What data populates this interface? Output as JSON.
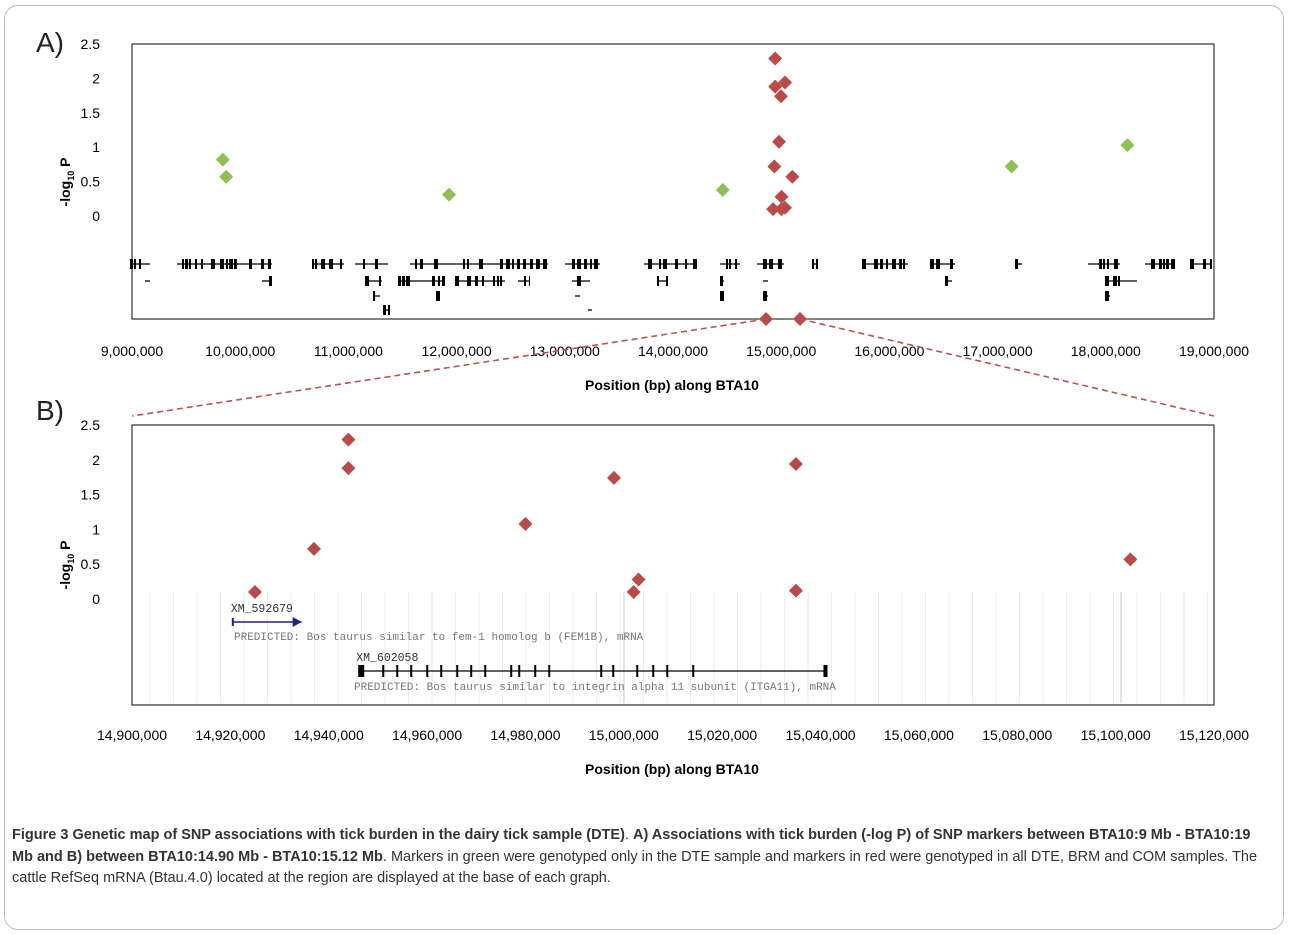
{
  "figure": {
    "caption": {
      "label": "Figure 3",
      "title": "Genetic map of SNP associations with tick burden in the dairy tick sample (DTE)",
      "sub_bold": "A) Associations with tick burden (-log P) of SNP markers between BTA10:9 Mb - BTA10:19 Mb and B) between BTA10:14.90 Mb - BTA10:15.12 Mb",
      "body": "Markers in green were genotyped only in the DTE sample and markers in red were genotyped in all DTE, BRM and COM samples. The cattle RefSeq mRNA (Btau.4.0) located at the region are displayed at the base of each graph."
    },
    "colors": {
      "green": "#8fbf55",
      "red": "#b94a48",
      "gene": "#000000",
      "zoom_line": "#c0504d"
    }
  },
  "chart_data": [
    {
      "type": "scatter",
      "panel_label": "A)",
      "xlabel": "Position (bp) along BTA10",
      "ylabel": "-log10 P",
      "xlim": [
        9000000,
        19000000
      ],
      "ylim": [
        0,
        2.5
      ],
      "x_ticks": [
        "9,000,000",
        "10,000,000",
        "11,000,000",
        "12,000,000",
        "13,000,000",
        "14,000,000",
        "15,000,000",
        "16,000,000",
        "17,000,000",
        "18,000,000",
        "19,000,000"
      ],
      "y_ticks": [
        "2.5",
        "2",
        "1.5",
        "1",
        "0.5",
        "0"
      ],
      "series": [
        {
          "color": "green",
          "points": [
            [
              9840000,
              0.82
            ],
            [
              9870000,
              0.57
            ],
            [
              11930000,
              0.31
            ],
            [
              14460000,
              0.38
            ],
            [
              17130000,
              0.72
            ],
            [
              18200000,
              1.03
            ]
          ]
        },
        {
          "color": "red",
          "points": [
            [
              14944000,
              2.29
            ],
            [
              14944000,
              1.88
            ],
            [
              15035000,
              1.94
            ],
            [
              14998000,
              1.74
            ],
            [
              14980000,
              1.08
            ],
            [
              14937000,
              0.72
            ],
            [
              15103000,
              0.57
            ],
            [
              15003000,
              0.28
            ],
            [
              15002000,
              0.1
            ],
            [
              14925000,
              0.1
            ],
            [
              15035000,
              0.12
            ]
          ]
        }
      ]
    },
    {
      "type": "scatter",
      "panel_label": "B)",
      "xlabel": "Position (bp) along BTA10",
      "ylabel": "-log10 P",
      "xlim": [
        14900000,
        15120000
      ],
      "ylim": [
        0,
        2.5
      ],
      "x_ticks": [
        "14,900,000",
        "14,920,000",
        "14,940,000",
        "14,960,000",
        "14,980,000",
        "15,000,000",
        "15,020,000",
        "15,040,000",
        "15,060,000",
        "15,080,000",
        "15,100,000",
        "15,120,000"
      ],
      "y_ticks": [
        "2.5",
        "2",
        "1.5",
        "1",
        "0.5",
        "0"
      ],
      "series": [
        {
          "color": "red",
          "points": [
            [
              14944000,
              2.29
            ],
            [
              14944000,
              1.88
            ],
            [
              15035000,
              1.94
            ],
            [
              14998000,
              1.74
            ],
            [
              14980000,
              1.08
            ],
            [
              14937000,
              0.72
            ],
            [
              15103000,
              0.57
            ],
            [
              15003000,
              0.28
            ],
            [
              15002000,
              0.1
            ],
            [
              14925000,
              0.1
            ],
            [
              15035000,
              0.12
            ]
          ]
        }
      ],
      "genes": [
        {
          "id": "XM_592679",
          "desc": "PREDICTED: Bos taurus similar to fem-1 homolog b (FEM1B), mRNA",
          "start": 14920500,
          "end": 14934500
        },
        {
          "id": "XM_602058",
          "desc": "PREDICTED: Bos taurus similar to integrin alpha 11 subunit (ITGA11), mRNA",
          "start": 14946000,
          "end": 15041000
        }
      ]
    }
  ]
}
